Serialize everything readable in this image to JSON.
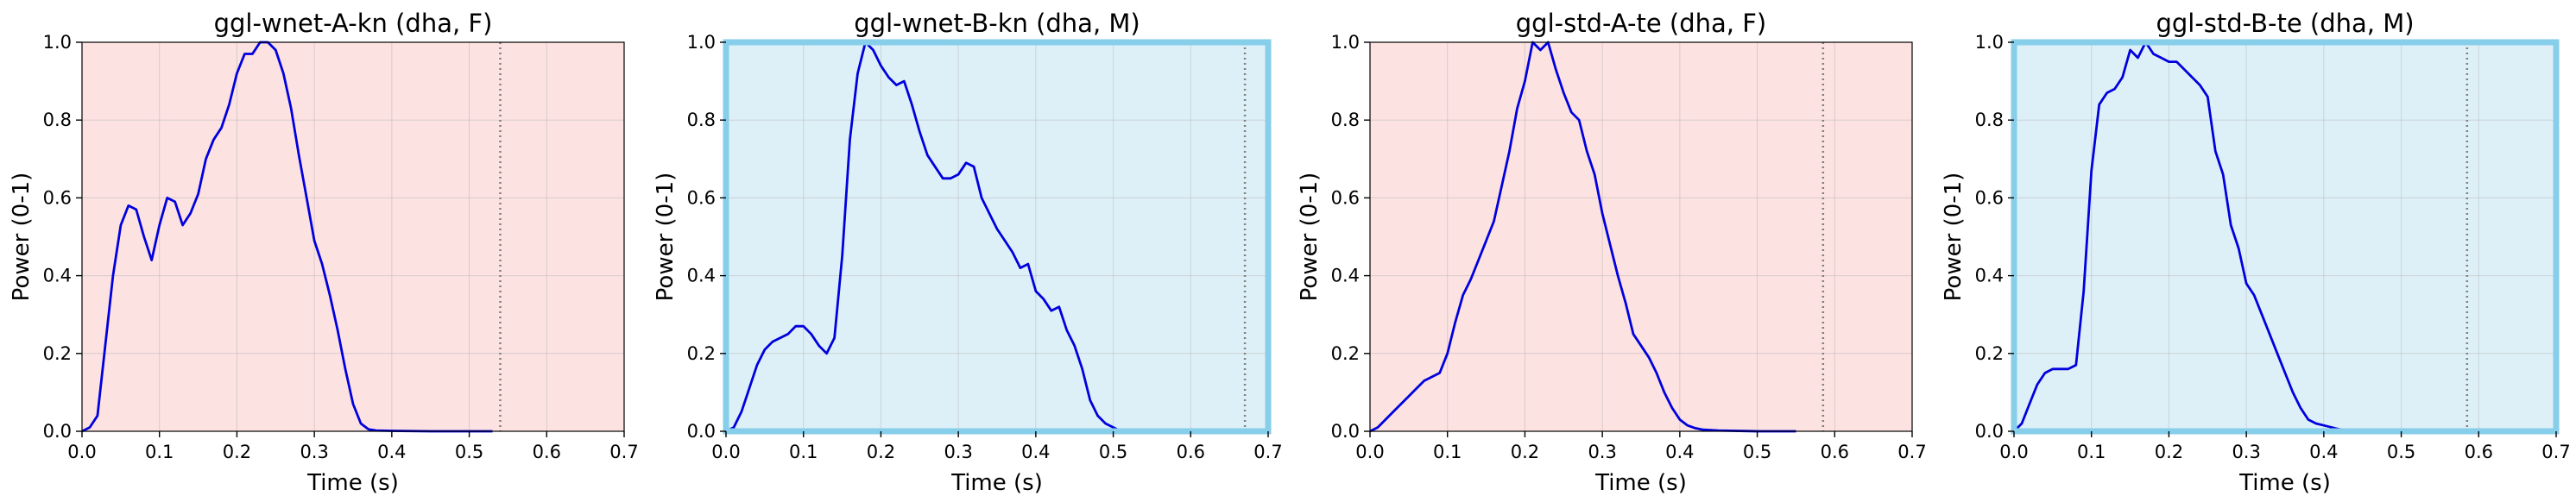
{
  "chart_data": [
    {
      "type": "line",
      "title": "ggl-wnet-A-kn (dha, F)",
      "xlabel": "Time (s)",
      "ylabel": "Power (0-1)",
      "xlim": [
        0,
        0.7
      ],
      "ylim": [
        0,
        1
      ],
      "xticks": [
        "0.0",
        "0.1",
        "0.2",
        "0.3",
        "0.4",
        "0.5",
        "0.6",
        "0.7"
      ],
      "yticks": [
        "0.0",
        "0.2",
        "0.4",
        "0.6",
        "0.8",
        "1.0"
      ],
      "background": "#fde2e2",
      "border_color": "",
      "line_color": "#0000dd",
      "grid": true,
      "end_marker_x": 0.54,
      "x": [
        0.0,
        0.01,
        0.02,
        0.03,
        0.04,
        0.05,
        0.06,
        0.07,
        0.08,
        0.09,
        0.1,
        0.11,
        0.12,
        0.13,
        0.14,
        0.15,
        0.16,
        0.17,
        0.18,
        0.19,
        0.2,
        0.21,
        0.22,
        0.23,
        0.24,
        0.25,
        0.26,
        0.27,
        0.28,
        0.29,
        0.3,
        0.31,
        0.32,
        0.33,
        0.34,
        0.35,
        0.36,
        0.37,
        0.38,
        0.4,
        0.45,
        0.5,
        0.53
      ],
      "y": [
        0.0,
        0.01,
        0.04,
        0.22,
        0.4,
        0.53,
        0.58,
        0.57,
        0.5,
        0.44,
        0.53,
        0.6,
        0.59,
        0.53,
        0.56,
        0.61,
        0.7,
        0.75,
        0.78,
        0.84,
        0.92,
        0.97,
        0.97,
        1.0,
        1.0,
        0.98,
        0.92,
        0.83,
        0.71,
        0.6,
        0.49,
        0.43,
        0.35,
        0.26,
        0.16,
        0.07,
        0.02,
        0.005,
        0.002,
        0.001,
        0.0,
        0.0,
        0.0
      ]
    },
    {
      "type": "line",
      "title": "ggl-wnet-B-kn (dha, M)",
      "xlabel": "Time (s)",
      "ylabel": "Power (0-1)",
      "xlim": [
        0,
        0.7
      ],
      "ylim": [
        0,
        1
      ],
      "xticks": [
        "0.0",
        "0.1",
        "0.2",
        "0.3",
        "0.4",
        "0.5",
        "0.6",
        "0.7"
      ],
      "yticks": [
        "0.0",
        "0.2",
        "0.4",
        "0.6",
        "0.8",
        "1.0"
      ],
      "background": "#def0f7",
      "border_color": "#87ceeb",
      "line_color": "#0000dd",
      "grid": true,
      "end_marker_x": 0.67,
      "x": [
        0.0,
        0.01,
        0.02,
        0.03,
        0.04,
        0.05,
        0.06,
        0.07,
        0.08,
        0.09,
        0.1,
        0.11,
        0.12,
        0.13,
        0.14,
        0.15,
        0.16,
        0.17,
        0.18,
        0.19,
        0.2,
        0.21,
        0.22,
        0.23,
        0.24,
        0.25,
        0.26,
        0.27,
        0.28,
        0.29,
        0.3,
        0.31,
        0.32,
        0.33,
        0.34,
        0.35,
        0.36,
        0.37,
        0.38,
        0.39,
        0.4,
        0.41,
        0.42,
        0.43,
        0.44,
        0.45,
        0.46,
        0.47,
        0.48,
        0.49,
        0.5,
        0.51
      ],
      "y": [
        0.0,
        0.01,
        0.05,
        0.11,
        0.17,
        0.21,
        0.23,
        0.24,
        0.25,
        0.27,
        0.27,
        0.25,
        0.22,
        0.2,
        0.24,
        0.45,
        0.75,
        0.92,
        1.0,
        0.98,
        0.94,
        0.91,
        0.89,
        0.9,
        0.84,
        0.77,
        0.71,
        0.68,
        0.65,
        0.65,
        0.66,
        0.69,
        0.68,
        0.6,
        0.56,
        0.52,
        0.49,
        0.46,
        0.42,
        0.43,
        0.36,
        0.34,
        0.31,
        0.32,
        0.26,
        0.22,
        0.16,
        0.08,
        0.04,
        0.02,
        0.01,
        0.0
      ]
    },
    {
      "type": "line",
      "title": "ggl-std-A-te (dha, F)",
      "xlabel": "Time (s)",
      "ylabel": "Power (0-1)",
      "xlim": [
        0,
        0.7
      ],
      "ylim": [
        0,
        1
      ],
      "xticks": [
        "0.0",
        "0.1",
        "0.2",
        "0.3",
        "0.4",
        "0.5",
        "0.6",
        "0.7"
      ],
      "yticks": [
        "0.0",
        "0.2",
        "0.4",
        "0.6",
        "0.8",
        "1.0"
      ],
      "background": "#fde2e2",
      "border_color": "",
      "line_color": "#0000dd",
      "grid": true,
      "end_marker_x": 0.585,
      "x": [
        0.0,
        0.01,
        0.02,
        0.03,
        0.04,
        0.05,
        0.06,
        0.07,
        0.08,
        0.09,
        0.1,
        0.11,
        0.12,
        0.13,
        0.14,
        0.15,
        0.16,
        0.17,
        0.18,
        0.19,
        0.2,
        0.21,
        0.22,
        0.23,
        0.24,
        0.25,
        0.26,
        0.27,
        0.28,
        0.29,
        0.3,
        0.31,
        0.32,
        0.33,
        0.34,
        0.35,
        0.36,
        0.37,
        0.38,
        0.39,
        0.4,
        0.41,
        0.42,
        0.43,
        0.45,
        0.5,
        0.55
      ],
      "y": [
        0.0,
        0.01,
        0.03,
        0.05,
        0.07,
        0.09,
        0.11,
        0.13,
        0.14,
        0.15,
        0.2,
        0.28,
        0.35,
        0.39,
        0.44,
        0.49,
        0.54,
        0.63,
        0.72,
        0.83,
        0.9,
        1.0,
        0.98,
        1.0,
        0.93,
        0.87,
        0.82,
        0.8,
        0.72,
        0.66,
        0.56,
        0.48,
        0.4,
        0.33,
        0.25,
        0.22,
        0.19,
        0.15,
        0.1,
        0.06,
        0.03,
        0.015,
        0.008,
        0.004,
        0.002,
        0.0,
        0.0
      ]
    },
    {
      "type": "line",
      "title": "ggl-std-B-te (dha, M)",
      "xlabel": "Time (s)",
      "ylabel": "Power (0-1)",
      "xlim": [
        0,
        0.7
      ],
      "ylim": [
        0,
        1
      ],
      "xticks": [
        "0.0",
        "0.1",
        "0.2",
        "0.3",
        "0.4",
        "0.5",
        "0.6",
        "0.7"
      ],
      "yticks": [
        "0.0",
        "0.2",
        "0.4",
        "0.6",
        "0.8",
        "1.0"
      ],
      "background": "#def0f7",
      "border_color": "#87ceeb",
      "line_color": "#0000dd",
      "grid": true,
      "end_marker_x": 0.585,
      "x": [
        0.0,
        0.01,
        0.02,
        0.03,
        0.04,
        0.05,
        0.06,
        0.07,
        0.08,
        0.09,
        0.1,
        0.11,
        0.12,
        0.13,
        0.14,
        0.15,
        0.16,
        0.17,
        0.18,
        0.19,
        0.2,
        0.21,
        0.22,
        0.23,
        0.24,
        0.25,
        0.26,
        0.27,
        0.28,
        0.29,
        0.3,
        0.31,
        0.32,
        0.33,
        0.34,
        0.35,
        0.36,
        0.37,
        0.38,
        0.39,
        0.4,
        0.42,
        0.45
      ],
      "y": [
        0.0,
        0.02,
        0.07,
        0.12,
        0.15,
        0.16,
        0.16,
        0.16,
        0.17,
        0.36,
        0.67,
        0.84,
        0.87,
        0.88,
        0.91,
        0.98,
        0.96,
        1.0,
        0.97,
        0.96,
        0.95,
        0.95,
        0.93,
        0.91,
        0.89,
        0.86,
        0.72,
        0.66,
        0.53,
        0.47,
        0.38,
        0.35,
        0.3,
        0.25,
        0.2,
        0.15,
        0.1,
        0.06,
        0.03,
        0.02,
        0.015,
        0.005,
        0.0
      ]
    }
  ]
}
